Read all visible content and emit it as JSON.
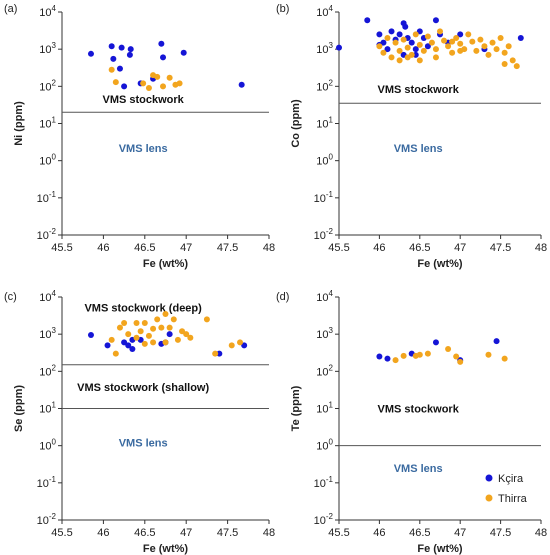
{
  "colors": {
    "kcira": "#1515d6",
    "thirra": "#f2a51e",
    "axis": "#333333",
    "threshold_line": "#555555",
    "stockwork_text": "#111111",
    "lens_text": "#3a6aa0"
  },
  "legend": {
    "placement": "bottom-right of panel (d)",
    "items": [
      {
        "name": "Kçira",
        "color_key": "kcira"
      },
      {
        "name": "Thirra",
        "color_key": "thirra"
      }
    ]
  },
  "chart_data": [
    {
      "type": "scatter",
      "panel_label": "(a)",
      "xlabel": "Fe (wt%)",
      "ylabel": "Ni (ppm)",
      "x_ticks": [
        "45.5",
        "46",
        "46.5",
        "47",
        "47.5",
        "48"
      ],
      "y_ticks": [
        {
          "base": "10",
          "exp": "-2"
        },
        {
          "base": "10",
          "exp": "-1"
        },
        {
          "base": "10",
          "exp": "0"
        },
        {
          "base": "10",
          "exp": "1"
        },
        {
          "base": "10",
          "exp": "2"
        },
        {
          "base": "10",
          "exp": "3"
        },
        {
          "base": "10",
          "exp": "4"
        }
      ],
      "xlim": [
        45.5,
        48
      ],
      "ylim": [
        0.01,
        10000
      ],
      "yscale": "log",
      "thresholds": [
        20
      ],
      "regions": [
        {
          "text": "VMS stockwork",
          "x": 46.48,
          "y": 45,
          "style": "stockwork"
        },
        {
          "text": "VMS lens",
          "x": 46.48,
          "y": 2.2,
          "style": "lens"
        }
      ],
      "series": [
        {
          "name": "Kçira",
          "color_key": "kcira",
          "points": [
            [
              45.85,
              750
            ],
            [
              46.1,
              1200
            ],
            [
              46.12,
              550
            ],
            [
              46.2,
              300
            ],
            [
              46.22,
              1100
            ],
            [
              46.32,
              700
            ],
            [
              46.33,
              1000
            ],
            [
              46.45,
              120
            ],
            [
              46.6,
              160
            ],
            [
              46.7,
              1400
            ],
            [
              46.72,
              600
            ],
            [
              46.97,
              800
            ],
            [
              47.67,
              110
            ],
            [
              46.25,
              100
            ]
          ]
        },
        {
          "name": "Thirra",
          "color_key": "thirra",
          "points": [
            [
              46.1,
              280
            ],
            [
              46.15,
              130
            ],
            [
              46.48,
              120
            ],
            [
              46.55,
              90
            ],
            [
              46.65,
              180
            ],
            [
              46.72,
              100
            ],
            [
              46.8,
              170
            ],
            [
              46.87,
              110
            ],
            [
              46.92,
              120
            ],
            [
              46.6,
              200
            ]
          ]
        }
      ]
    },
    {
      "type": "scatter",
      "panel_label": "(b)",
      "xlabel": "Fe (wt%)",
      "ylabel": "Co (ppm)",
      "x_ticks": [
        "45.5",
        "46",
        "46.5",
        "47",
        "47.5",
        "48"
      ],
      "y_ticks": [
        {
          "base": "10",
          "exp": "-2"
        },
        {
          "base": "10",
          "exp": "-1"
        },
        {
          "base": "10",
          "exp": "0"
        },
        {
          "base": "10",
          "exp": "1"
        },
        {
          "base": "10",
          "exp": "2"
        },
        {
          "base": "10",
          "exp": "3"
        },
        {
          "base": "10",
          "exp": "4"
        }
      ],
      "xlim": [
        45.5,
        48
      ],
      "ylim": [
        0.01,
        10000
      ],
      "yscale": "log",
      "thresholds": [
        35
      ],
      "regions": [
        {
          "text": "VMS stockwork",
          "x": 46.48,
          "y": 85,
          "style": "stockwork"
        },
        {
          "text": "VMS lens",
          "x": 46.48,
          "y": 2.2,
          "style": "lens"
        }
      ],
      "series": [
        {
          "name": "Kçira",
          "color_key": "kcira",
          "points": [
            [
              45.5,
              1100
            ],
            [
              45.85,
              6000
            ],
            [
              46.0,
              2500
            ],
            [
              46.05,
              1500
            ],
            [
              46.1,
              1000
            ],
            [
              46.15,
              3000
            ],
            [
              46.2,
              1800
            ],
            [
              46.25,
              2500
            ],
            [
              46.3,
              700
            ],
            [
              46.32,
              4000
            ],
            [
              46.35,
              2000
            ],
            [
              46.4,
              1500
            ],
            [
              46.45,
              1000
            ],
            [
              46.5,
              3000
            ],
            [
              46.55,
              2000
            ],
            [
              46.7,
              6000
            ],
            [
              46.75,
              2500
            ],
            [
              46.85,
              1500
            ],
            [
              47.0,
              2500
            ],
            [
              47.3,
              1000
            ],
            [
              47.75,
              2000
            ],
            [
              46.3,
              5000
            ],
            [
              46.6,
              1200
            ],
            [
              46.0,
              1300
            ],
            [
              46.45,
              700
            ]
          ]
        },
        {
          "name": "Thirra",
          "color_key": "thirra",
          "points": [
            [
              46.0,
              1200
            ],
            [
              46.05,
              800
            ],
            [
              46.1,
              2000
            ],
            [
              46.15,
              600
            ],
            [
              46.2,
              1500
            ],
            [
              46.25,
              900
            ],
            [
              46.3,
              1800
            ],
            [
              46.35,
              1100
            ],
            [
              46.4,
              700
            ],
            [
              46.45,
              2500
            ],
            [
              46.5,
              1300
            ],
            [
              46.55,
              900
            ],
            [
              46.6,
              2200
            ],
            [
              46.65,
              1500
            ],
            [
              46.7,
              1000
            ],
            [
              46.75,
              3000
            ],
            [
              46.8,
              1700
            ],
            [
              46.85,
              1200
            ],
            [
              46.9,
              800
            ],
            [
              46.95,
              2000
            ],
            [
              47.0,
              1400
            ],
            [
              47.05,
              1000
            ],
            [
              47.1,
              2500
            ],
            [
              47.15,
              1600
            ],
            [
              47.2,
              900
            ],
            [
              47.25,
              1800
            ],
            [
              47.3,
              1200
            ],
            [
              47.35,
              700
            ],
            [
              47.4,
              1500
            ],
            [
              47.45,
              1000
            ],
            [
              47.5,
              2000
            ],
            [
              47.55,
              800
            ],
            [
              47.6,
              1200
            ],
            [
              47.65,
              500
            ],
            [
              47.7,
              350
            ],
            [
              47.55,
              400
            ],
            [
              46.5,
              500
            ],
            [
              46.35,
              600
            ],
            [
              46.7,
              600
            ],
            [
              47.0,
              900
            ],
            [
              46.25,
              500
            ],
            [
              46.9,
              1600
            ]
          ]
        }
      ]
    },
    {
      "type": "scatter",
      "panel_label": "(c)",
      "xlabel": "Fe (wt%)",
      "ylabel": "Se (ppm)",
      "x_ticks": [
        "45.5",
        "46",
        "46.5",
        "47",
        "47.5",
        "48"
      ],
      "y_ticks": [
        {
          "base": "10",
          "exp": "-2"
        },
        {
          "base": "10",
          "exp": "-1"
        },
        {
          "base": "10",
          "exp": "0"
        },
        {
          "base": "10",
          "exp": "1"
        },
        {
          "base": "10",
          "exp": "2"
        },
        {
          "base": "10",
          "exp": "3"
        },
        {
          "base": "10",
          "exp": "4"
        }
      ],
      "xlim": [
        45.5,
        48
      ],
      "ylim": [
        0.01,
        10000
      ],
      "yscale": "log",
      "thresholds": [
        150,
        10
      ],
      "regions": [
        {
          "text": "VMS stockwork (deep)",
          "x": 46.48,
          "y": 5200,
          "style": "stockwork"
        },
        {
          "text": "VMS stockwork (shallow)",
          "x": 46.48,
          "y": 38,
          "style": "stockwork"
        },
        {
          "text": "VMS lens",
          "x": 46.48,
          "y": 1.2,
          "style": "lens"
        }
      ],
      "series": [
        {
          "name": "Kçira",
          "color_key": "kcira",
          "points": [
            [
              45.85,
              950
            ],
            [
              46.05,
              500
            ],
            [
              46.25,
              600
            ],
            [
              46.3,
              500
            ],
            [
              46.35,
              400
            ],
            [
              46.45,
              700
            ],
            [
              46.7,
              550
            ],
            [
              46.75,
              600
            ],
            [
              46.8,
              1000
            ],
            [
              47.4,
              300
            ],
            [
              47.7,
              500
            ],
            [
              46.35,
              700
            ]
          ]
        },
        {
          "name": "Thirra",
          "color_key": "thirra",
          "points": [
            [
              46.1,
              700
            ],
            [
              46.15,
              300
            ],
            [
              46.2,
              1500
            ],
            [
              46.25,
              2000
            ],
            [
              46.3,
              1000
            ],
            [
              46.4,
              800
            ],
            [
              46.45,
              1200
            ],
            [
              46.5,
              2000
            ],
            [
              46.55,
              900
            ],
            [
              46.6,
              600
            ],
            [
              46.65,
              2500
            ],
            [
              46.7,
              1500
            ],
            [
              46.75,
              3500
            ],
            [
              46.8,
              1500
            ],
            [
              46.85,
              2500
            ],
            [
              46.9,
              700
            ],
            [
              46.95,
              1200
            ],
            [
              47.0,
              1000
            ],
            [
              47.05,
              800
            ],
            [
              47.25,
              2500
            ],
            [
              47.35,
              300
            ],
            [
              47.55,
              500
            ],
            [
              47.65,
              600
            ],
            [
              46.6,
              1400
            ],
            [
              46.4,
              2000
            ],
            [
              46.75,
              600
            ],
            [
              46.5,
              550
            ]
          ]
        }
      ]
    },
    {
      "type": "scatter",
      "panel_label": "(d)",
      "xlabel": "Fe (wt%)",
      "ylabel": "Te (ppm)",
      "x_ticks": [
        "45.5",
        "46",
        "46.5",
        "47",
        "47.5",
        "48"
      ],
      "y_ticks": [
        {
          "base": "10",
          "exp": "-2"
        },
        {
          "base": "10",
          "exp": "-1"
        },
        {
          "base": "10",
          "exp": "0"
        },
        {
          "base": "10",
          "exp": "1"
        },
        {
          "base": "10",
          "exp": "2"
        },
        {
          "base": "10",
          "exp": "3"
        },
        {
          "base": "10",
          "exp": "4"
        }
      ],
      "xlim": [
        45.5,
        48
      ],
      "ylim": [
        0.01,
        10000
      ],
      "yscale": "log",
      "thresholds": [
        1
      ],
      "regions": [
        {
          "text": "VMS stockwork",
          "x": 46.48,
          "y": 10,
          "style": "stockwork"
        },
        {
          "text": "VMS lens",
          "x": 46.48,
          "y": 0.25,
          "style": "lens"
        }
      ],
      "series": [
        {
          "name": "Kçira",
          "color_key": "kcira",
          "points": [
            [
              46.0,
              250
            ],
            [
              46.1,
              220
            ],
            [
              46.4,
              300
            ],
            [
              46.7,
              600
            ],
            [
              47.0,
              200
            ],
            [
              47.45,
              650
            ]
          ]
        },
        {
          "name": "Thirra",
          "color_key": "thirra",
          "points": [
            [
              46.2,
              200
            ],
            [
              46.3,
              260
            ],
            [
              46.5,
              280
            ],
            [
              46.6,
              300
            ],
            [
              46.85,
              400
            ],
            [
              46.95,
              250
            ],
            [
              47.0,
              180
            ],
            [
              47.35,
              280
            ],
            [
              47.55,
              220
            ],
            [
              46.45,
              260
            ]
          ]
        }
      ]
    }
  ]
}
